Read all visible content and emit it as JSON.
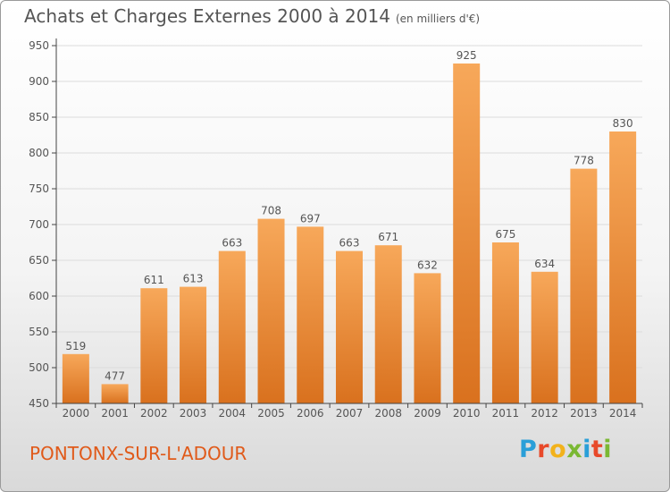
{
  "header": {
    "title": "Achats et Charges Externes 2000 à 2014",
    "unit": "(en milliers d'€)"
  },
  "footer": {
    "commune": "PONTONX-SUR-L'ADOUR",
    "brand_letters": [
      "P",
      "r",
      "o",
      "x",
      "i",
      "t",
      "i"
    ],
    "brand_colors": [
      "#2a9fd8",
      "#e8492a",
      "#f2b21b",
      "#7ab833",
      "#2a9fd8",
      "#e8492a",
      "#7ab833"
    ]
  },
  "colors": {
    "bar_light": "#f7a85a",
    "bar_dark": "#d9711e",
    "axis": "#444444",
    "grid": "#dcdcdc",
    "text": "#555555"
  },
  "chart_data": {
    "type": "bar",
    "categories": [
      "2000",
      "2001",
      "2002",
      "2003",
      "2004",
      "2005",
      "2006",
      "2007",
      "2008",
      "2009",
      "2010",
      "2011",
      "2012",
      "2013",
      "2014"
    ],
    "values": [
      519,
      477,
      611,
      613,
      663,
      708,
      697,
      663,
      671,
      632,
      925,
      675,
      634,
      778,
      830
    ],
    "data_labels": [
      "519",
      "477",
      "611",
      "613",
      "663",
      "708",
      "697",
      "663",
      "671",
      "632",
      "925",
      "675",
      "634",
      "778",
      "830"
    ],
    "title": "Achats et Charges Externes 2000 à 2014",
    "ylim": [
      450,
      950
    ],
    "yticks": [
      450,
      500,
      550,
      600,
      650,
      700,
      750,
      800,
      850,
      900,
      950
    ],
    "grid": true
  }
}
